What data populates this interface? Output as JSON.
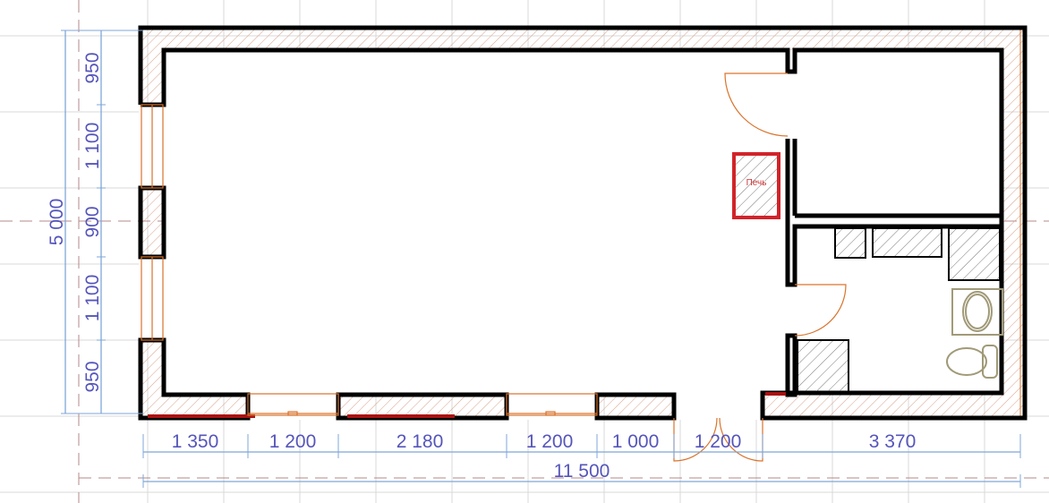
{
  "stove_label": "Печь",
  "dimensions": {
    "left": [
      "950",
      "1 100",
      "900",
      "1 100",
      "950"
    ],
    "left_total": "5 000",
    "bottom": [
      "1 350",
      "1 200",
      "2 180",
      "1 200",
      "1 000",
      "1 200",
      "3 370"
    ],
    "bottom_total": "11 500"
  },
  "colors": {
    "wall": "#000000",
    "stove": "#d2232a",
    "dimension": "#5555bb",
    "opening": "#d9732c",
    "fixture": "#a09a78"
  }
}
